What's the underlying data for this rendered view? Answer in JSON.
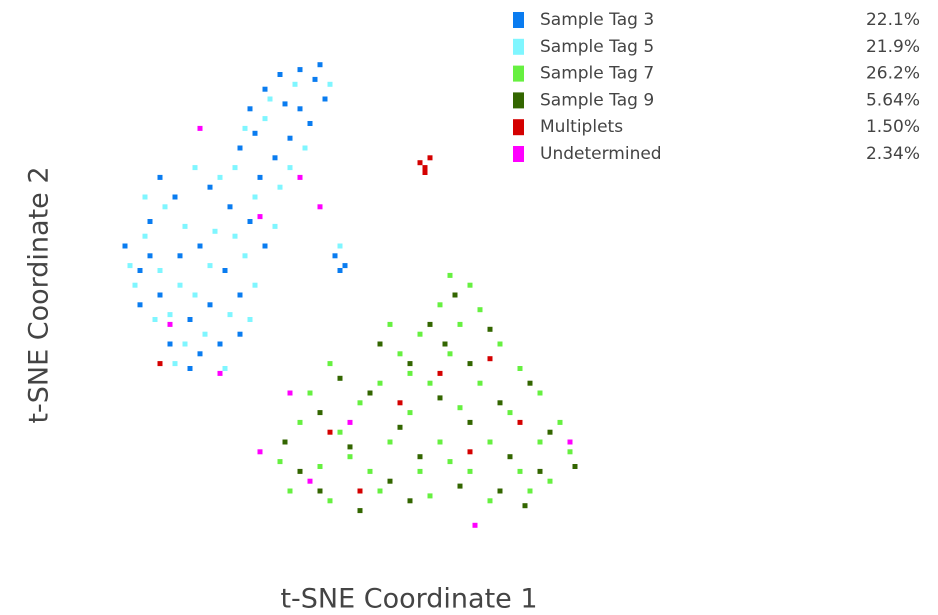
{
  "chart_data": {
    "type": "scatter",
    "x_label": "t-SNE Coordinate 1",
    "y_label": "t-SNE Coordinate 2",
    "xlim": [
      0,
      100
    ],
    "ylim": [
      0,
      100
    ],
    "series": [
      {
        "name": "Sample Tag 3",
        "color": "#0a7cf0",
        "share": 22.1,
        "share_label": "22.1%",
        "x": [
          28,
          30,
          33,
          36,
          40,
          43,
          45,
          42,
          38,
          35,
          32,
          40,
          44,
          37,
          31,
          5,
          8,
          10,
          12,
          15,
          18,
          20,
          22,
          25,
          28,
          30,
          14,
          18,
          24,
          8,
          12,
          26,
          33,
          16,
          22,
          10,
          28,
          20,
          47,
          49,
          48
        ],
        "values": [
          80,
          88,
          92,
          95,
          96,
          94,
          90,
          85,
          82,
          78,
          74,
          88,
          97,
          89,
          83,
          60,
          55,
          65,
          50,
          70,
          45,
          60,
          72,
          55,
          50,
          65,
          40,
          35,
          40,
          48,
          74,
          68,
          60,
          58,
          48,
          58,
          42,
          38,
          58,
          56,
          55
        ]
      },
      {
        "name": "Sample Tag 5",
        "color": "#7ff6ff",
        "share": 21.9,
        "share_label": "21.9%",
        "x": [
          29,
          34,
          39,
          41,
          36,
          33,
          46,
          27,
          31,
          6,
          9,
          11,
          13,
          16,
          19,
          21,
          23,
          26,
          29,
          31,
          15,
          25,
          7,
          17,
          24,
          12,
          19,
          27,
          22,
          14,
          35,
          17,
          9,
          30,
          48,
          38
        ],
        "values": [
          84,
          90,
          93,
          80,
          72,
          86,
          93,
          76,
          70,
          56,
          62,
          45,
          68,
          52,
          76,
          42,
          63,
          46,
          58,
          52,
          36,
          35,
          52,
          64,
          74,
          55,
          50,
          62,
          56,
          46,
          64,
          40,
          70,
          45,
          60,
          76
        ]
      },
      {
        "name": "Sample Tag 7",
        "color": "#66f040",
        "share": 26.2,
        "share_label": "26.2%",
        "x": [
          70,
          74,
          68,
          76,
          72,
          64,
          80,
          60,
          70,
          84,
          56,
          66,
          76,
          88,
          52,
          62,
          72,
          82,
          92,
          40,
          48,
          58,
          68,
          78,
          88,
          94,
          36,
          44,
          54,
          64,
          74,
          84,
          90,
          38,
          46,
          56,
          66,
          78,
          86,
          42,
          46,
          58,
          50,
          70,
          62
        ],
        "values": [
          54,
          52,
          48,
          47,
          44,
          42,
          40,
          38,
          38,
          35,
          32,
          32,
          32,
          30,
          28,
          26,
          27,
          26,
          24,
          24,
          22,
          20,
          20,
          20,
          20,
          18,
          16,
          15,
          14,
          14,
          14,
          14,
          12,
          10,
          8,
          10,
          9,
          8,
          10,
          30,
          36,
          44,
          17,
          16,
          34
        ]
      },
      {
        "name": "Sample Tag 9",
        "color": "#336600",
        "share": 5.64,
        "share_label": "5.64%",
        "x": [
          71,
          66,
          78,
          62,
          74,
          86,
          54,
          68,
          80,
          44,
          60,
          74,
          90,
          50,
          64,
          82,
          40,
          58,
          72,
          88,
          44,
          52,
          62,
          80,
          48,
          56,
          85,
          37,
          95,
          69
        ],
        "values": [
          50,
          44,
          43,
          36,
          36,
          32,
          30,
          29,
          28,
          26,
          23,
          24,
          22,
          19,
          17,
          17,
          14,
          12,
          11,
          14,
          10,
          6,
          8,
          10,
          33,
          40,
          7,
          20,
          15,
          40
        ]
      },
      {
        "name": "Multiplets",
        "color": "#d40000",
        "share": 1.5,
        "share_label": "1.50%",
        "x": [
          64,
          65,
          66,
          65,
          46,
          60,
          74,
          84,
          68,
          12,
          52,
          78
        ],
        "values": [
          77,
          76,
          78,
          75,
          22,
          28,
          18,
          24,
          34,
          36,
          10,
          37
        ]
      },
      {
        "name": "Undetermined",
        "color": "#ff00ff",
        "share": 2.34,
        "share_label": "2.34%",
        "x": [
          20,
          40,
          32,
          44,
          24,
          14,
          38,
          42,
          32,
          75,
          94,
          50
        ],
        "values": [
          84,
          74,
          66,
          68,
          34,
          44,
          30,
          12,
          18,
          3,
          20,
          24
        ]
      }
    ]
  }
}
